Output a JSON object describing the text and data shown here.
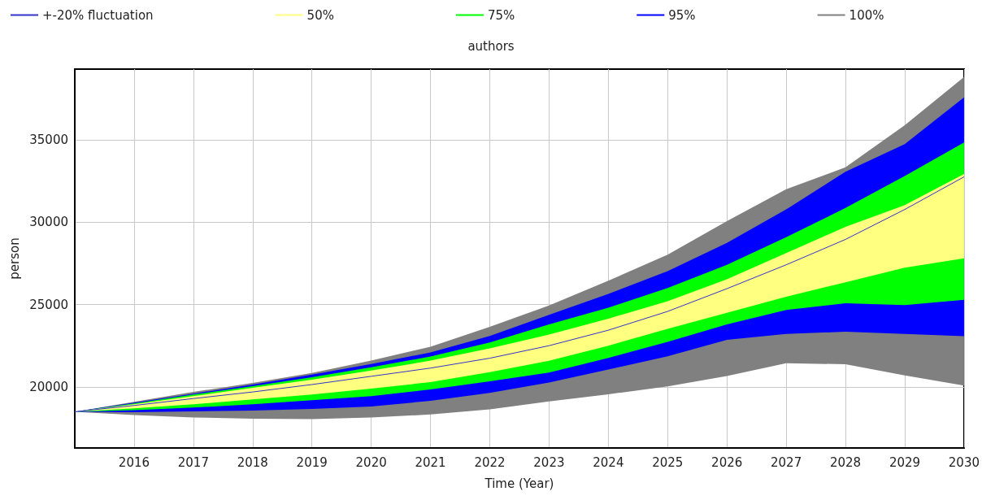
{
  "chart_data": {
    "type": "line",
    "title": "authors",
    "xlabel": "Time (Year)",
    "ylabel": "person",
    "x": [
      2015,
      2016,
      2017,
      2018,
      2019,
      2020,
      2021,
      2022,
      2023,
      2024,
      2025,
      2026,
      2027,
      2028,
      2029,
      2030
    ],
    "xlim": [
      2015,
      2030
    ],
    "xticks": [
      2016,
      2017,
      2018,
      2019,
      2020,
      2021,
      2022,
      2023,
      2024,
      2025,
      2026,
      2027,
      2028,
      2029,
      2030
    ],
    "ylim": [
      16300,
      39300
    ],
    "yticks": [
      20000,
      25000,
      30000,
      35000
    ],
    "grid": true,
    "legend": "top",
    "marker": "none",
    "series": [
      {
        "name": "+-20% fluctuation",
        "color": "#3333cc",
        "values": [
          18500,
          18880,
          19300,
          19700,
          20150,
          20650,
          21150,
          21750,
          22510,
          23450,
          24590,
          25970,
          27420,
          28960,
          30780,
          32760
        ]
      },
      {
        "name": "50%",
        "type": "area",
        "color": "#ffff80",
        "values": [
          null,
          null,
          null,
          null,
          null,
          null,
          null,
          null,
          null,
          null,
          null,
          null,
          null,
          null,
          null,
          null
        ],
        "lower": [
          18500,
          18700,
          18950,
          19250,
          19550,
          19900,
          20300,
          20900,
          21590,
          22510,
          23530,
          24510,
          25480,
          26360,
          27240,
          27810
        ],
        "upper": [
          18500,
          18950,
          19450,
          19950,
          20450,
          21000,
          21600,
          22350,
          23180,
          24150,
          25210,
          26540,
          28130,
          29720,
          31040,
          32930
        ]
      },
      {
        "name": "75%",
        "type": "area",
        "color": "#00ff00",
        "values": [
          null,
          null,
          null,
          null,
          null,
          null,
          null,
          null,
          null,
          null,
          null,
          null,
          null,
          null,
          null,
          null
        ],
        "lower": [
          18500,
          18600,
          18750,
          18950,
          19200,
          19450,
          19850,
          20350,
          20880,
          21770,
          22740,
          23800,
          24680,
          25090,
          24980,
          25300
        ],
        "upper": [
          18500,
          19000,
          19550,
          20050,
          20600,
          21200,
          21850,
          22700,
          23800,
          24810,
          26010,
          27420,
          29100,
          30870,
          32810,
          34840
        ]
      },
      {
        "name": "95%",
        "type": "area",
        "color": "#0000ff",
        "values": [
          null,
          null,
          null,
          null,
          null,
          null,
          null,
          null,
          null,
          null,
          null,
          null,
          null,
          null,
          null,
          null
        ],
        "lower": [
          18500,
          18470,
          18520,
          18570,
          18670,
          18820,
          19160,
          19650,
          20270,
          21060,
          21860,
          22860,
          23220,
          23360,
          23220,
          23090
        ],
        "upper": [
          18500,
          19050,
          19600,
          20150,
          20750,
          21400,
          22100,
          23100,
          24380,
          25650,
          27030,
          28750,
          30780,
          33070,
          34750,
          37580
        ]
      },
      {
        "name": "100%",
        "type": "area",
        "color": "#808080",
        "values": [
          null,
          null,
          null,
          null,
          null,
          null,
          null,
          null,
          null,
          null,
          null,
          null,
          null,
          null,
          null,
          null
        ],
        "lower": [
          18500,
          18300,
          18150,
          18080,
          18050,
          18150,
          18330,
          18650,
          19120,
          19560,
          20040,
          20670,
          21450,
          21380,
          20710,
          20090
        ],
        "upper": [
          18500,
          19100,
          19700,
          20250,
          20850,
          21600,
          22450,
          23650,
          24950,
          26450,
          28040,
          30070,
          32010,
          33340,
          35900,
          38820
        ]
      }
    ]
  }
}
